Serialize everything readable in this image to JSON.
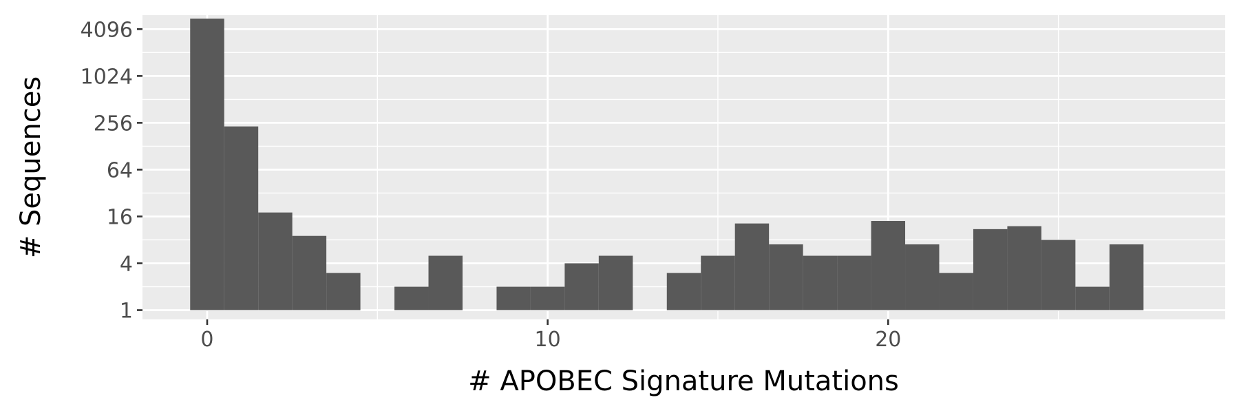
{
  "chart_data": {
    "type": "bar",
    "subtype": "histogram",
    "title": "",
    "xlabel": "# APOBEC Signature Mutations",
    "ylabel": "# Sequences",
    "y_scale": "log2",
    "xlim": [
      -1.9,
      29.9
    ],
    "ylim": [
      0.76,
      6200
    ],
    "x_ticks": [
      0,
      10,
      20
    ],
    "x_tick_labels": [
      "0",
      "10",
      "20"
    ],
    "y_ticks": [
      1,
      4,
      16,
      64,
      256,
      1024,
      4096
    ],
    "y_tick_labels": [
      "1",
      "4",
      "16",
      "64",
      "256",
      "1024",
      "4096"
    ],
    "bin_width": 1,
    "bins": [
      {
        "x": 0,
        "count": 5600
      },
      {
        "x": 1,
        "count": 230
      },
      {
        "x": 2,
        "count": 18
      },
      {
        "x": 3,
        "count": 9
      },
      {
        "x": 4,
        "count": 3
      },
      {
        "x": 5,
        "count": 0
      },
      {
        "x": 6,
        "count": 2
      },
      {
        "x": 7,
        "count": 5
      },
      {
        "x": 8,
        "count": 0
      },
      {
        "x": 9,
        "count": 2
      },
      {
        "x": 10,
        "count": 2
      },
      {
        "x": 11,
        "count": 4
      },
      {
        "x": 12,
        "count": 5
      },
      {
        "x": 13,
        "count": 0
      },
      {
        "x": 14,
        "count": 3
      },
      {
        "x": 15,
        "count": 5
      },
      {
        "x": 16,
        "count": 13
      },
      {
        "x": 17,
        "count": 7
      },
      {
        "x": 18,
        "count": 5
      },
      {
        "x": 19,
        "count": 5
      },
      {
        "x": 20,
        "count": 14
      },
      {
        "x": 21,
        "count": 7
      },
      {
        "x": 22,
        "count": 3
      },
      {
        "x": 23,
        "count": 11
      },
      {
        "x": 24,
        "count": 12
      },
      {
        "x": 25,
        "count": 8
      },
      {
        "x": 26,
        "count": 2
      },
      {
        "x": 27,
        "count": 7
      }
    ],
    "grid": true,
    "legend": "none",
    "colors": {
      "bar": "#595959",
      "panel_background": "#ebebeb",
      "grid": "#ffffff",
      "tick_mark": "#333333",
      "tick_text": "#4d4d4d",
      "axis_title": "#000000"
    }
  }
}
